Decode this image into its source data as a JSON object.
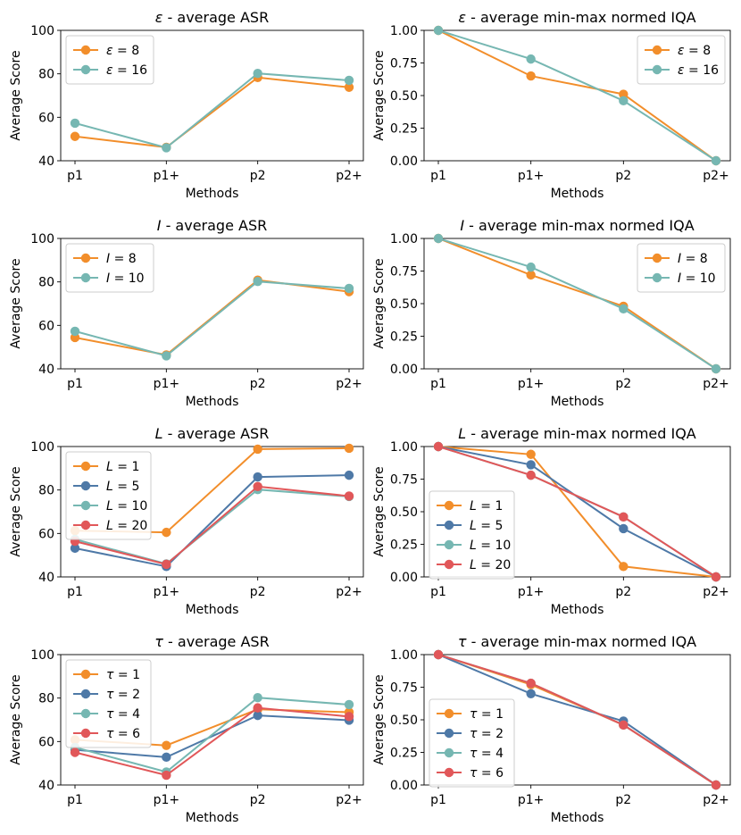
{
  "chart_data": [
    {
      "type": "line",
      "title": "ε - average ASR",
      "title_var": "ε",
      "title_rest": " - average ASR",
      "xlabel": "Methods",
      "ylabel": "Average Score",
      "categories": [
        "p1",
        "p1+",
        "p2",
        "p2+"
      ],
      "ylim": [
        40,
        100
      ],
      "yticks": [
        "40",
        "60",
        "80",
        "100"
      ],
      "ytick_values": [
        40,
        60,
        80,
        100
      ],
      "legend_loc": "upper-left",
      "series": [
        {
          "name": "ε = 8",
          "var": "ε",
          "eq": " = 8",
          "color": "#F28E2B",
          "values": [
            51.2,
            46.2,
            78.3,
            73.8
          ]
        },
        {
          "name": "ε = 16",
          "var": "ε",
          "eq": " = 16",
          "color": "#76B7B2",
          "values": [
            57.3,
            46.0,
            80.2,
            77.0
          ]
        }
      ]
    },
    {
      "type": "line",
      "title": "ε - average min-max normed IQA",
      "title_var": "ε",
      "title_rest": " - average min-max normed IQA",
      "xlabel": "Methods",
      "ylabel": "Average Score",
      "categories": [
        "p1",
        "p1+",
        "p2",
        "p2+"
      ],
      "ylim": [
        0,
        1
      ],
      "yticks": [
        "0.00",
        "0.25",
        "0.50",
        "0.75",
        "1.00"
      ],
      "ytick_values": [
        0,
        0.25,
        0.5,
        0.75,
        1
      ],
      "legend_loc": "upper-right",
      "series": [
        {
          "name": "ε = 8",
          "var": "ε",
          "eq": " = 8",
          "color": "#F28E2B",
          "values": [
            1.0,
            0.65,
            0.51,
            0.0
          ]
        },
        {
          "name": "ε = 16",
          "var": "ε",
          "eq": " = 16",
          "color": "#76B7B2",
          "values": [
            1.0,
            0.78,
            0.46,
            0.0
          ]
        }
      ]
    },
    {
      "type": "line",
      "title": "I - average ASR",
      "title_var": "I",
      "title_rest": " - average ASR",
      "xlabel": "Methods",
      "ylabel": "Average Score",
      "categories": [
        "p1",
        "p1+",
        "p2",
        "p2+"
      ],
      "ylim": [
        40,
        100
      ],
      "yticks": [
        "40",
        "60",
        "80",
        "100"
      ],
      "ytick_values": [
        40,
        60,
        80,
        100
      ],
      "legend_loc": "upper-left",
      "series": [
        {
          "name": "I = 8",
          "var": "I",
          "eq": " = 8",
          "color": "#F28E2B",
          "values": [
            54.4,
            46.4,
            80.8,
            75.5
          ]
        },
        {
          "name": "I = 10",
          "var": "I",
          "eq": " = 10",
          "color": "#76B7B2",
          "values": [
            57.3,
            46.0,
            80.2,
            77.0
          ]
        }
      ]
    },
    {
      "type": "line",
      "title": "I - average min-max normed IQA",
      "title_var": "I",
      "title_rest": " - average min-max normed IQA",
      "xlabel": "Methods",
      "ylabel": "Average Score",
      "categories": [
        "p1",
        "p1+",
        "p2",
        "p2+"
      ],
      "ylim": [
        0,
        1
      ],
      "yticks": [
        "0.00",
        "0.25",
        "0.50",
        "0.75",
        "1.00"
      ],
      "ytick_values": [
        0,
        0.25,
        0.5,
        0.75,
        1
      ],
      "legend_loc": "upper-right",
      "series": [
        {
          "name": "I = 8",
          "var": "I",
          "eq": " = 8",
          "color": "#F28E2B",
          "values": [
            1.0,
            0.72,
            0.48,
            0.0
          ]
        },
        {
          "name": "I = 10",
          "var": "I",
          "eq": " = 10",
          "color": "#76B7B2",
          "values": [
            1.0,
            0.78,
            0.46,
            0.0
          ]
        }
      ]
    },
    {
      "type": "line",
      "title": "L - average ASR",
      "title_var": "L",
      "title_rest": " - average ASR",
      "xlabel": "Methods",
      "ylabel": "Average Score",
      "categories": [
        "p1",
        "p1+",
        "p2",
        "p2+"
      ],
      "ylim": [
        40,
        100
      ],
      "yticks": [
        "40",
        "60",
        "80",
        "100"
      ],
      "ytick_values": [
        40,
        60,
        80,
        100
      ],
      "legend_loc": "upper-left",
      "series": [
        {
          "name": "L = 1",
          "var": "L",
          "eq": " = 1",
          "color": "#F28E2B",
          "values": [
            61.3,
            60.5,
            98.8,
            99.2
          ]
        },
        {
          "name": "L = 5",
          "var": "L",
          "eq": " = 5",
          "color": "#4E79A7",
          "values": [
            53.2,
            44.8,
            86.0,
            86.8
          ]
        },
        {
          "name": "L = 10",
          "var": "L",
          "eq": " = 10",
          "color": "#76B7B2",
          "values": [
            57.3,
            46.0,
            80.2,
            77.0
          ]
        },
        {
          "name": "L = 20",
          "var": "L",
          "eq": " = 20",
          "color": "#E15759",
          "values": [
            56.4,
            45.8,
            81.6,
            77.2
          ]
        }
      ]
    },
    {
      "type": "line",
      "title": "L - average min-max normed IQA",
      "title_var": "L",
      "title_rest": " - average min-max normed IQA",
      "xlabel": "Methods",
      "ylabel": "Average Score",
      "categories": [
        "p1",
        "p1+",
        "p2",
        "p2+"
      ],
      "ylim": [
        0,
        1
      ],
      "yticks": [
        "0.00",
        "0.25",
        "0.50",
        "0.75",
        "1.00"
      ],
      "ytick_values": [
        0,
        0.25,
        0.5,
        0.75,
        1
      ],
      "legend_loc": "center-left",
      "series": [
        {
          "name": "L = 1",
          "var": "L",
          "eq": " = 1",
          "color": "#F28E2B",
          "values": [
            1.0,
            0.94,
            0.08,
            0.0
          ]
        },
        {
          "name": "L = 5",
          "var": "L",
          "eq": " = 5",
          "color": "#4E79A7",
          "values": [
            1.0,
            0.86,
            0.37,
            0.0
          ]
        },
        {
          "name": "L = 10",
          "var": "L",
          "eq": " = 10",
          "color": "#76B7B2",
          "values": [
            1.0,
            0.78,
            0.46,
            0.0
          ]
        },
        {
          "name": "L = 20",
          "var": "L",
          "eq": " = 20",
          "color": "#E15759",
          "values": [
            1.0,
            0.78,
            0.46,
            0.0
          ]
        }
      ]
    },
    {
      "type": "line",
      "title": "τ - average ASR",
      "title_var": "τ",
      "title_rest": " - average ASR",
      "xlabel": "Methods",
      "ylabel": "Average Score",
      "categories": [
        "p1",
        "p1+",
        "p2",
        "p2+"
      ],
      "ylim": [
        40,
        100
      ],
      "yticks": [
        "40",
        "60",
        "80",
        "100"
      ],
      "ytick_values": [
        40,
        60,
        80,
        100
      ],
      "legend_loc": "upper-left",
      "series": [
        {
          "name": "τ = 1",
          "var": "τ",
          "eq": " = 1",
          "color": "#F28E2B",
          "values": [
            60.8,
            58.2,
            74.8,
            73.5
          ]
        },
        {
          "name": "τ = 2",
          "var": "τ",
          "eq": " = 2",
          "color": "#4E79A7",
          "values": [
            56.2,
            52.8,
            72.0,
            69.8
          ]
        },
        {
          "name": "τ = 4",
          "var": "τ",
          "eq": " = 4",
          "color": "#76B7B2",
          "values": [
            57.3,
            46.0,
            80.2,
            77.0
          ]
        },
        {
          "name": "τ = 6",
          "var": "τ",
          "eq": " = 6",
          "color": "#E15759",
          "values": [
            55.0,
            44.5,
            75.5,
            71.5
          ]
        }
      ]
    },
    {
      "type": "line",
      "title": "τ - average min-max normed IQA",
      "title_var": "τ",
      "title_rest": " - average min-max normed IQA",
      "xlabel": "Methods",
      "ylabel": "Average Score",
      "categories": [
        "p1",
        "p1+",
        "p2",
        "p2+"
      ],
      "ylim": [
        0,
        1
      ],
      "yticks": [
        "0.00",
        "0.25",
        "0.50",
        "0.75",
        "1.00"
      ],
      "ytick_values": [
        0,
        0.25,
        0.5,
        0.75,
        1
      ],
      "legend_loc": "center-left",
      "series": [
        {
          "name": "τ = 1",
          "var": "τ",
          "eq": " = 1",
          "color": "#F28E2B",
          "values": [
            1.0,
            0.77,
            0.46,
            0.0
          ]
        },
        {
          "name": "τ = 2",
          "var": "τ",
          "eq": " = 2",
          "color": "#4E79A7",
          "values": [
            1.0,
            0.7,
            0.49,
            0.0
          ]
        },
        {
          "name": "τ = 4",
          "var": "τ",
          "eq": " = 4",
          "color": "#76B7B2",
          "values": [
            1.0,
            0.78,
            0.46,
            0.0
          ]
        },
        {
          "name": "τ = 6",
          "var": "τ",
          "eq": " = 6",
          "color": "#E15759",
          "values": [
            1.0,
            0.78,
            0.46,
            0.0
          ]
        }
      ]
    }
  ]
}
